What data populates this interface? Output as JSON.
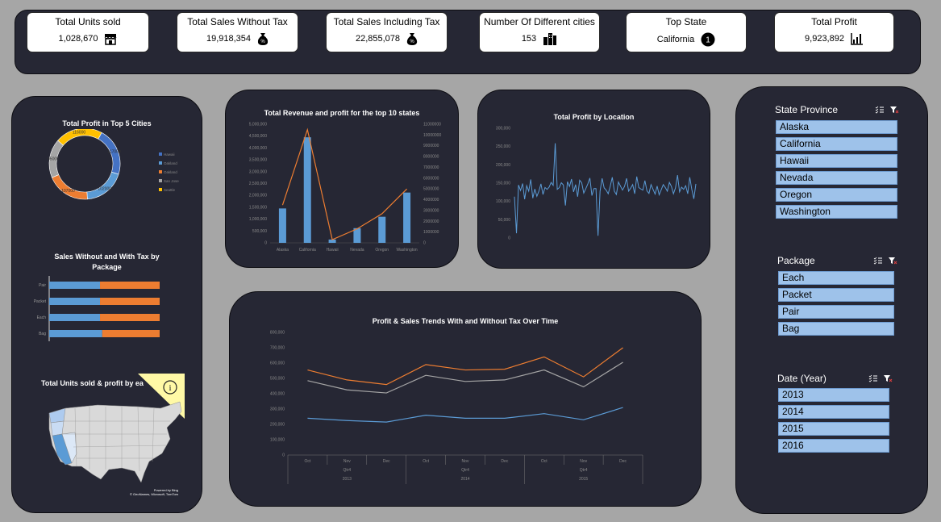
{
  "kpis": [
    {
      "label": "Total Units sold",
      "value": "1,028,670",
      "icon": "store-icon"
    },
    {
      "label": "Total Sales Without Tax",
      "value": "19,918,354",
      "icon": "money-bag-icon"
    },
    {
      "label": "Total Sales Including Tax",
      "value": "22,855,078",
      "icon": "money-bag-icon"
    },
    {
      "label": "Number Of Different cities",
      "value": "153",
      "icon": "city-icon"
    },
    {
      "label": "Top State",
      "value": "California",
      "icon": "number-one-icon"
    },
    {
      "label": "Total Profit",
      "value": "9,923,892",
      "icon": "bar-chart-icon"
    }
  ],
  "icon_glyphs": {
    "money": "%",
    "one": "1"
  },
  "colors": {
    "blue": "#5b9bd5",
    "orange": "#ed7d31",
    "gray": "#a5a5a5",
    "yellow": "#ffc000",
    "navy": "#4472c4",
    "panel": "#262734",
    "slicer": "#9ec2ea"
  },
  "top_cities": {
    "title": "Total Profit in  Top 5 Cities",
    "chart_data": {
      "type": "pie",
      "categories": [
        "Hawaii",
        "Oakland",
        "Oakland",
        "San Jose",
        "Seattle"
      ],
      "values": [
        117000,
        102000,
        107000,
        95000,
        116000
      ],
      "labels": [
        "117000",
        "102000",
        "107000",
        "95000",
        "116000"
      ],
      "legend": [
        "Hawaii",
        "Oakland",
        "Oakland",
        "San Jose",
        "Seattle"
      ]
    }
  },
  "revenue_profit": {
    "title": "Total Revenue and profit for the top 10 states",
    "chart_data": {
      "type": "bar",
      "categories": [
        "Alaska",
        "California",
        "Hawaii",
        "Nevada",
        "Oregon",
        "Washington"
      ],
      "series": [
        {
          "name": "Revenue",
          "values": [
            1450000,
            4450000,
            140000,
            620000,
            1100000,
            2120000
          ]
        },
        {
          "name": "Profit",
          "values": [
            3500000,
            10500000,
            300000,
            1300000,
            2700000,
            5000000
          ]
        }
      ],
      "y_ticks": [
        "0",
        "500,000",
        "1,000,000",
        "1,500,000",
        "2,000,000",
        "2,500,000",
        "3,000,000",
        "3,500,000",
        "4,000,000",
        "4,500,000",
        "5,000,000"
      ],
      "y2_ticks": [
        "0",
        "1000000",
        "2000000",
        "3000000",
        "4000000",
        "5000000",
        "6000000",
        "7000000",
        "8000000",
        "9000000",
        "10000000",
        "11000000"
      ],
      "ylim": [
        0,
        5000000
      ],
      "y2lim": [
        0,
        11000000
      ]
    }
  },
  "profit_location": {
    "title": "Total Profit by Location",
    "chart_data": {
      "type": "line",
      "values": [
        113000,
        13000,
        145000,
        130000,
        149000,
        106000,
        143000,
        128000,
        160000,
        109000,
        134000,
        114000,
        128000,
        148000,
        119000,
        138000,
        133000,
        139000,
        152000,
        144000,
        259000,
        133000,
        138000,
        151000,
        145000,
        89000,
        154000,
        141000,
        161000,
        126000,
        146000,
        113000,
        158000,
        151000,
        123000,
        135000,
        148000,
        164000,
        116000,
        135000,
        135000,
        6000,
        128000,
        163000,
        137000,
        131000,
        121000,
        142000,
        166000,
        128000,
        119000,
        153000,
        142000,
        131000,
        141000,
        163000,
        128000,
        136000,
        146000,
        121000,
        168000,
        138000,
        134000,
        131000,
        157000,
        129000,
        122000,
        146000,
        133000,
        120000,
        142000,
        118000,
        132000,
        146000,
        138000,
        128000,
        152000,
        141000,
        121000,
        137000,
        172000,
        126000,
        139000,
        133000,
        143000,
        121000,
        166000,
        133000,
        107000,
        148000
      ],
      "y_ticks": [
        "0",
        "50,000",
        "100,000",
        "150,000",
        "200,000",
        "250,000",
        "300,000"
      ],
      "ylim": [
        0,
        300000
      ]
    }
  },
  "trends": {
    "title": "Profit & Sales Trends With and Without Tax Over Time",
    "chart_data": {
      "type": "line",
      "categories": [
        "Oct",
        "Nov",
        "Dec",
        "Oct",
        "Nov",
        "Dec",
        "Oct",
        "Nov",
        "Dec"
      ],
      "quarters": [
        "Qtr4",
        "Qtr4",
        "Qtr4"
      ],
      "years": [
        "2013",
        "2014",
        "2015"
      ],
      "series": [
        {
          "values": [
            555000,
            490000,
            460000,
            590000,
            555000,
            560000,
            640000,
            510000,
            700000
          ]
        },
        {
          "values": [
            485000,
            425000,
            405000,
            520000,
            480000,
            490000,
            555000,
            445000,
            605000
          ]
        },
        {
          "values": [
            240000,
            225000,
            215000,
            260000,
            240000,
            240000,
            270000,
            230000,
            310000
          ]
        }
      ],
      "y_ticks": [
        "0",
        "100,000",
        "200,000",
        "300,000",
        "400,000",
        "500,000",
        "600,000",
        "700,000",
        "800,000"
      ],
      "ylim": [
        0,
        800000
      ]
    }
  },
  "tax_package": {
    "title_line1": "Sales Without and With Tax by",
    "title_line2": "Package",
    "chart_data": {
      "type": "bar",
      "categories": [
        "Pair",
        "Packet",
        "Each",
        "Bag"
      ],
      "series": [
        {
          "name": "Sales Without Tax",
          "values": [
            46,
            46,
            46,
            48
          ]
        },
        {
          "name": "Sales With Tax",
          "values": [
            54,
            54,
            54,
            52
          ]
        }
      ]
    }
  },
  "map": {
    "title": "Total Units sold & profit by ea",
    "credit1": "Powered by Bing",
    "credit2": "© GeoNames, Microsoft, TomTom",
    "info_glyph": "i"
  },
  "slicers": {
    "state": {
      "title": "State Province",
      "items": [
        "Alaska",
        "California",
        "Hawaii",
        "Nevada",
        "Oregon",
        "Washington"
      ]
    },
    "package": {
      "title": "Package",
      "items": [
        "Each",
        "Packet",
        "Pair",
        "Bag"
      ]
    },
    "year": {
      "title": "Date (Year)",
      "items": [
        "2013",
        "2014",
        "2015",
        "2016"
      ]
    }
  }
}
